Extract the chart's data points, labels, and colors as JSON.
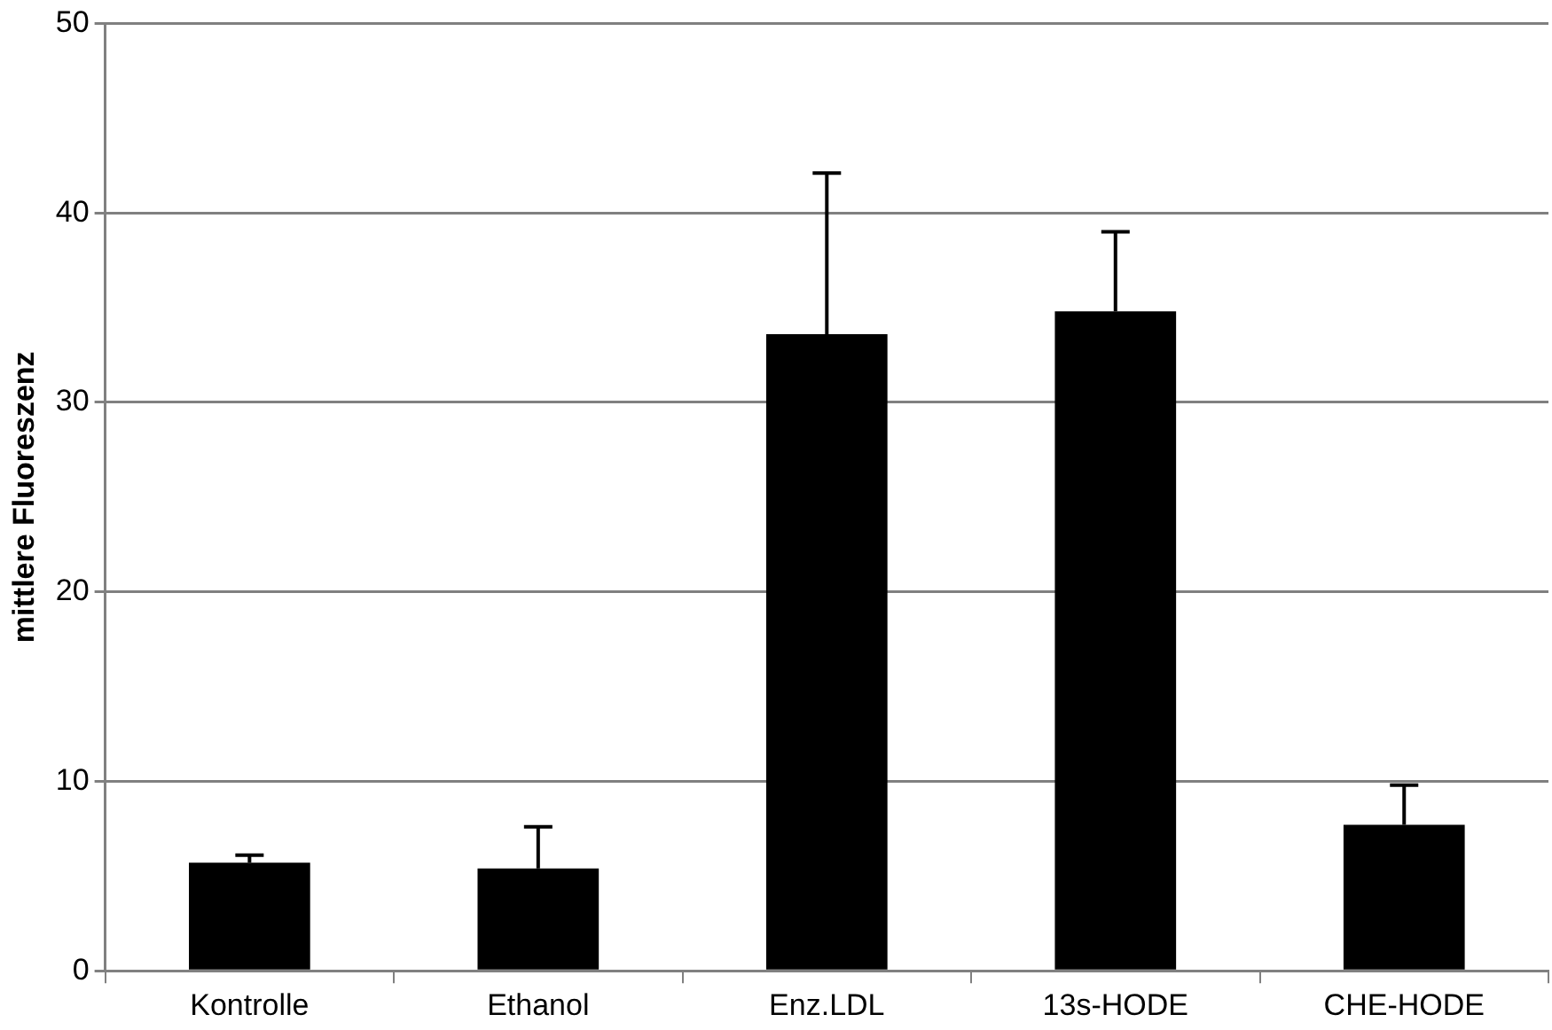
{
  "chart_data": {
    "type": "bar",
    "ylabel": "mittlere Fluoreszenz",
    "categories": [
      "Kontrolle",
      "Ethanol",
      "Enz.LDL",
      "13s-HODE",
      "CHE-HODE"
    ],
    "values": [
      5.7,
      5.4,
      33.6,
      34.8,
      7.7
    ],
    "errors": [
      [
        5.7,
        6.1
      ],
      [
        5.4,
        7.6
      ],
      [
        33.6,
        42.1
      ],
      [
        34.8,
        39.0
      ],
      [
        7.7,
        9.8
      ]
    ],
    "color": "#000000",
    "ylim": [
      0,
      50
    ],
    "yticks": [
      0,
      10,
      20,
      30,
      40,
      50
    ],
    "grid": "y",
    "legend": false
  }
}
